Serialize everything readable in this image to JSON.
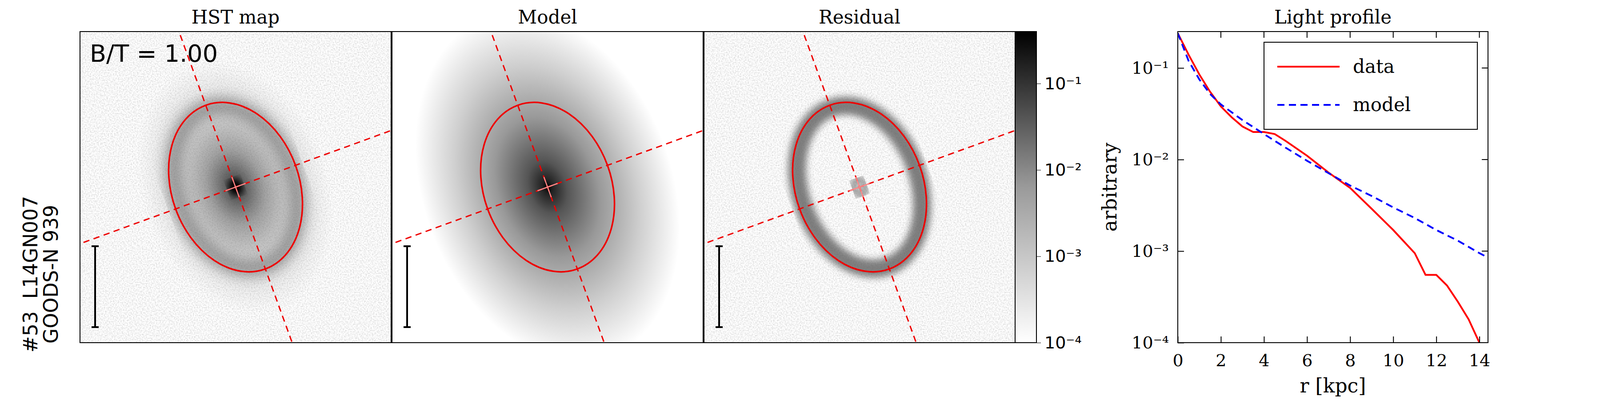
{
  "chart_data": [
    {
      "type": "image",
      "title": "HST map",
      "annotation": "B/T = 1.00",
      "ylabel": [
        "#53  L14GN007",
        "GOODS-N 939"
      ]
    },
    {
      "type": "image",
      "title": "Model"
    },
    {
      "type": "image",
      "title": "Residual",
      "log": true,
      "colorbar_lim": [
        0.0001,
        0.4
      ],
      "colorbar_ticks": [
        {
          "value": 0.1,
          "label": "10⁻¹"
        },
        {
          "value": 0.01,
          "label": "10⁻²"
        },
        {
          "value": 0.001,
          "label": "10⁻³"
        },
        {
          "value": 0.0001,
          "label": "10⁻⁴"
        }
      ]
    },
    {
      "type": "line",
      "title": "Light profile",
      "xlabel": "r [kpc]",
      "ylabel": "arbitrary",
      "log": "y",
      "legend": "upper right",
      "xlim": [
        0,
        14.4
      ],
      "ylim": [
        0.0001,
        0.25
      ],
      "xticks": [
        0,
        2,
        4,
        6,
        8,
        10,
        12,
        14
      ],
      "yticks": [
        {
          "value": 0.0001,
          "label": "10⁻⁴"
        },
        {
          "value": 0.001,
          "label": "10⁻³"
        },
        {
          "value": 0.01,
          "label": "10⁻²"
        },
        {
          "value": 0.1,
          "label": "10⁻¹"
        }
      ],
      "series": [
        {
          "name": "data",
          "color": "#ff0000",
          "line_style": "solid",
          "x": [
            0,
            0.5,
            1,
            1.5,
            2,
            2.5,
            3,
            3.5,
            4,
            4.5,
            5,
            6,
            7,
            8,
            9,
            10,
            11,
            11.5,
            12,
            12.5,
            13,
            13.5,
            14
          ],
          "values": [
            0.24,
            0.14,
            0.085,
            0.055,
            0.038,
            0.029,
            0.023,
            0.02,
            0.02,
            0.019,
            0.016,
            0.011,
            0.0072,
            0.0049,
            0.0029,
            0.0017,
            0.00095,
            0.00055,
            0.00055,
            0.00042,
            0.00028,
            0.00018,
            0.0001
          ]
        },
        {
          "name": "model",
          "color": "#0000ff",
          "line_style": "dashed",
          "x": [
            0,
            0.5,
            1,
            1.5,
            2,
            3,
            4,
            5,
            6,
            7,
            8,
            9,
            10,
            11,
            12,
            13,
            14,
            14.4
          ],
          "values": [
            0.24,
            0.12,
            0.075,
            0.052,
            0.04,
            0.027,
            0.019,
            0.0135,
            0.0097,
            0.0071,
            0.0052,
            0.004,
            0.003,
            0.0023,
            0.0017,
            0.0013,
            0.00095,
            0.00085
          ]
        }
      ]
    }
  ]
}
